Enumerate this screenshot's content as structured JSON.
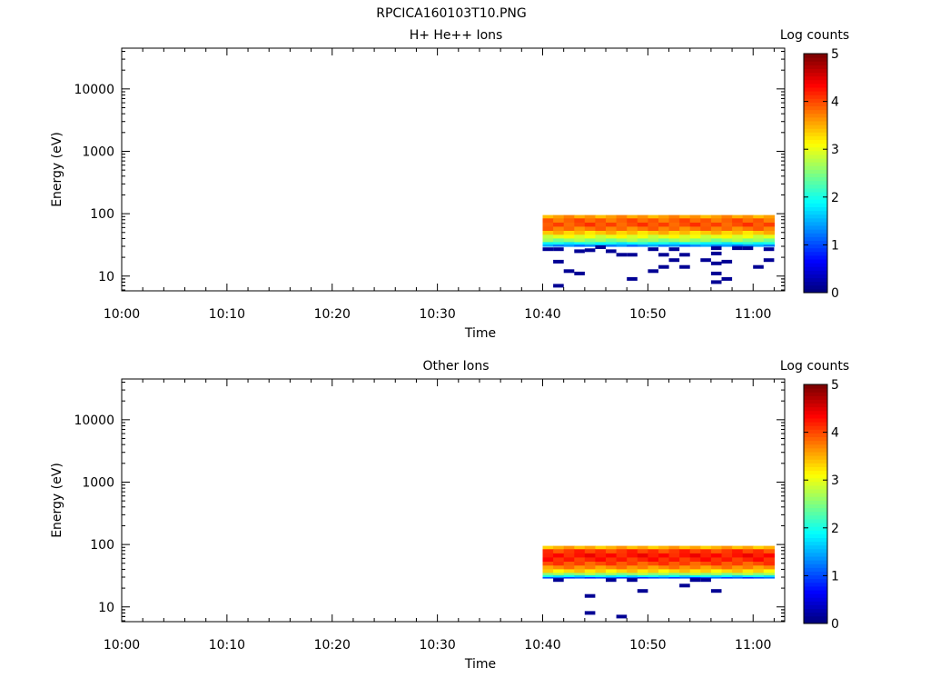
{
  "page_title": "RPCICA160103T10.PNG",
  "chart_data": [
    {
      "type": "heatmap",
      "title": "H+ He++ Ions",
      "xlabel": "Time",
      "ylabel": "Energy (eV)",
      "x_ticks": [
        "10:00",
        "10:10",
        "10:20",
        "10:30",
        "10:40",
        "10:50",
        "11:00"
      ],
      "xlim": [
        "10:00",
        "11:03"
      ],
      "y_scale": "log",
      "ylim": [
        5.8,
        45000
      ],
      "y_ticks": [
        "10",
        "100",
        "1000",
        "10000"
      ],
      "data_time_range": [
        "10:40",
        "11:02"
      ],
      "core_energy_range_eV": [
        30,
        95
      ],
      "colorbar": {
        "label": "Log counts",
        "range": [
          0,
          5
        ],
        "ticks": [
          "0",
          "1",
          "2",
          "3",
          "4",
          "5"
        ]
      },
      "bands": [
        {
          "energy": [
            84,
            95
          ],
          "log_counts": 3.6
        },
        {
          "energy": [
            72,
            84
          ],
          "log_counts": 3.9
        },
        {
          "energy": [
            62,
            72
          ],
          "log_counts": 4.0
        },
        {
          "energy": [
            53,
            62
          ],
          "log_counts": 3.8
        },
        {
          "energy": [
            46,
            53
          ],
          "log_counts": 3.4
        },
        {
          "energy": [
            40,
            46
          ],
          "log_counts": 3.0
        },
        {
          "energy": [
            35,
            40
          ],
          "log_counts": 2.6
        },
        {
          "energy": [
            32,
            35
          ],
          "log_counts": 1.9
        },
        {
          "energy": [
            30,
            32
          ],
          "log_counts": 1.3
        }
      ],
      "sparse_points": [
        {
          "time": "10:40:30",
          "energy": 27,
          "log_counts": 0.1
        },
        {
          "time": "10:41:30",
          "energy": 27,
          "log_counts": 0.1
        },
        {
          "time": "10:41:30",
          "energy": 17,
          "log_counts": 0.1
        },
        {
          "time": "10:42:30",
          "energy": 12,
          "log_counts": 0.1
        },
        {
          "time": "10:43:30",
          "energy": 25,
          "log_counts": 0.1
        },
        {
          "time": "10:43:30",
          "energy": 11,
          "log_counts": 0.1
        },
        {
          "time": "10:41:30",
          "energy": 7,
          "log_counts": 0.1
        },
        {
          "time": "10:44:30",
          "energy": 26,
          "log_counts": 0.1
        },
        {
          "time": "10:45:30",
          "energy": 29,
          "log_counts": 0.1
        },
        {
          "time": "10:46:30",
          "energy": 25,
          "log_counts": 0.1
        },
        {
          "time": "10:47:30",
          "energy": 22,
          "log_counts": 0.1
        },
        {
          "time": "10:48:30",
          "energy": 22,
          "log_counts": 0.1
        },
        {
          "time": "10:48:30",
          "energy": 9,
          "log_counts": 0.1
        },
        {
          "time": "10:50:30",
          "energy": 27,
          "log_counts": 0.1
        },
        {
          "time": "10:50:30",
          "energy": 12,
          "log_counts": 0.1
        },
        {
          "time": "10:51:30",
          "energy": 22,
          "log_counts": 0.1
        },
        {
          "time": "10:51:30",
          "energy": 14,
          "log_counts": 0.1
        },
        {
          "time": "10:52:30",
          "energy": 27,
          "log_counts": 0.1
        },
        {
          "time": "10:52:30",
          "energy": 18,
          "log_counts": 0.1
        },
        {
          "time": "10:53:30",
          "energy": 22,
          "log_counts": 0.1
        },
        {
          "time": "10:53:30",
          "energy": 14,
          "log_counts": 0.1
        },
        {
          "time": "10:55:30",
          "energy": 18,
          "log_counts": 0.1
        },
        {
          "time": "10:56:30",
          "energy": 28,
          "log_counts": 0.1
        },
        {
          "time": "10:56:30",
          "energy": 23,
          "log_counts": 0.1
        },
        {
          "time": "10:56:30",
          "energy": 16,
          "log_counts": 0.1
        },
        {
          "time": "10:56:30",
          "energy": 11,
          "log_counts": 0.1
        },
        {
          "time": "10:56:30",
          "energy": 8,
          "log_counts": 0.1
        },
        {
          "time": "10:57:30",
          "energy": 17,
          "log_counts": 0.1
        },
        {
          "time": "10:57:30",
          "energy": 9,
          "log_counts": 0.1
        },
        {
          "time": "10:58:30",
          "energy": 28,
          "log_counts": 0.1
        },
        {
          "time": "10:59:30",
          "energy": 28,
          "log_counts": 0.1
        },
        {
          "time": "11:00:30",
          "energy": 14,
          "log_counts": 0.1
        },
        {
          "time": "11:01:30",
          "energy": 27,
          "log_counts": 0.1
        },
        {
          "time": "11:01:30",
          "energy": 18,
          "log_counts": 0.1
        }
      ]
    },
    {
      "type": "heatmap",
      "title": "Other Ions",
      "xlabel": "Time",
      "ylabel": "Energy (eV)",
      "x_ticks": [
        "10:00",
        "10:10",
        "10:20",
        "10:30",
        "10:40",
        "10:50",
        "11:00"
      ],
      "xlim": [
        "10:00",
        "11:03"
      ],
      "y_scale": "log",
      "ylim": [
        5.8,
        45000
      ],
      "y_ticks": [
        "10",
        "100",
        "1000",
        "10000"
      ],
      "data_time_range": [
        "10:40",
        "11:02"
      ],
      "core_energy_range_eV": [
        29,
        95
      ],
      "colorbar": {
        "label": "Log counts",
        "range": [
          0,
          5
        ],
        "ticks": [
          "0",
          "1",
          "2",
          "3",
          "4",
          "5"
        ]
      },
      "bands": [
        {
          "energy": [
            84,
            95
          ],
          "log_counts": 3.5
        },
        {
          "energy": [
            72,
            84
          ],
          "log_counts": 4.1
        },
        {
          "energy": [
            62,
            72
          ],
          "log_counts": 4.3
        },
        {
          "energy": [
            53,
            62
          ],
          "log_counts": 4.2
        },
        {
          "energy": [
            46,
            53
          ],
          "log_counts": 4.0
        },
        {
          "energy": [
            40,
            46
          ],
          "log_counts": 3.7
        },
        {
          "energy": [
            35,
            40
          ],
          "log_counts": 3.3
        },
        {
          "energy": [
            32,
            35
          ],
          "log_counts": 2.6
        },
        {
          "energy": [
            30,
            32
          ],
          "log_counts": 1.8
        },
        {
          "energy": [
            29,
            30
          ],
          "log_counts": 1.0
        }
      ],
      "sparse_points": [
        {
          "time": "10:41:30",
          "energy": 27,
          "log_counts": 0.1
        },
        {
          "time": "10:44:30",
          "energy": 15,
          "log_counts": 0.1
        },
        {
          "time": "10:44:30",
          "energy": 8,
          "log_counts": 0.1
        },
        {
          "time": "10:46:30",
          "energy": 27,
          "log_counts": 0.1
        },
        {
          "time": "10:47:30",
          "energy": 7,
          "log_counts": 0.1
        },
        {
          "time": "10:48:30",
          "energy": 27,
          "log_counts": 0.1
        },
        {
          "time": "10:49:30",
          "energy": 18,
          "log_counts": 0.1
        },
        {
          "time": "10:53:30",
          "energy": 22,
          "log_counts": 0.1
        },
        {
          "time": "10:54:30",
          "energy": 27,
          "log_counts": 0.1
        },
        {
          "time": "10:55:30",
          "energy": 27,
          "log_counts": 0.1
        },
        {
          "time": "10:56:30",
          "energy": 18,
          "log_counts": 0.1
        }
      ]
    }
  ]
}
